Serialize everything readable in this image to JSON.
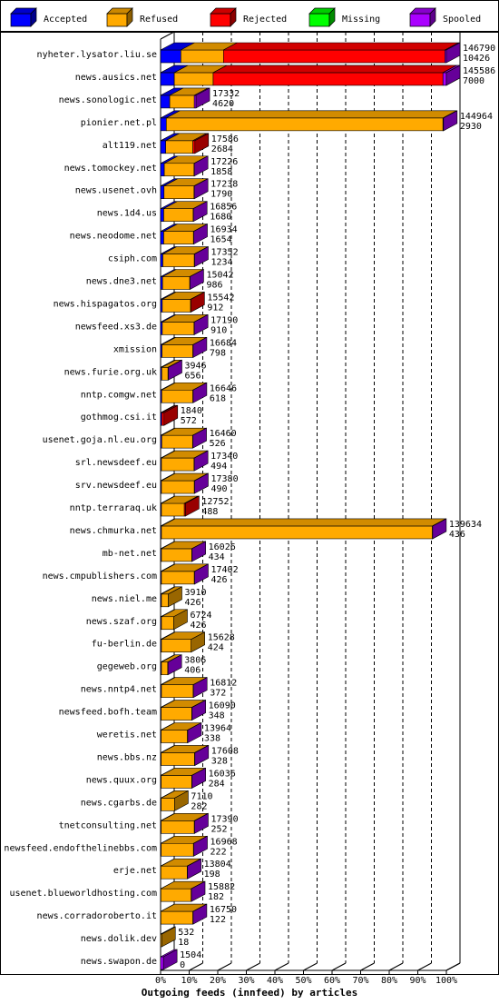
{
  "chart_data": {
    "type": "bar",
    "orientation": "horizontal",
    "stacked": true,
    "title": "",
    "xlabel": "Outgoing feeds (innfeed) by articles",
    "ylabel": "",
    "xlim": [
      0,
      100
    ],
    "x_ticks": [
      "0%",
      "10%",
      "20%",
      "30%",
      "40%",
      "50%",
      "60%",
      "70%",
      "80%",
      "90%",
      "100%"
    ],
    "grid": true,
    "legend_position": "top",
    "legend": [
      {
        "name": "Accepted",
        "color": "#0000ff"
      },
      {
        "name": "Refused",
        "color": "#ffaa00"
      },
      {
        "name": "Rejected",
        "color": "#ff0000"
      },
      {
        "name": "Missing",
        "color": "#00ff00"
      },
      {
        "name": "Spooled",
        "color": "#aa00ff"
      }
    ],
    "rows": [
      {
        "name": "nyheter.lysator.liu.se",
        "total": "146790",
        "accepted_label": "10426",
        "segments": [
          7.1,
          14.9,
          77.5,
          0,
          0.5
        ]
      },
      {
        "name": "news.ausics.net",
        "total": "145586",
        "accepted_label": "7000",
        "segments": [
          4.8,
          13.6,
          80.4,
          0,
          1.2
        ]
      },
      {
        "name": "news.sonologic.net",
        "total": "17332",
        "accepted_label": "4620",
        "segments": [
          3.2,
          8.6,
          0,
          0,
          0.6
        ]
      },
      {
        "name": "pionier.net.pl",
        "total": "144964",
        "accepted_label": "2930",
        "segments": [
          2.0,
          96.8,
          0,
          0,
          0.2
        ]
      },
      {
        "name": "alt119.net",
        "total": "17586",
        "accepted_label": "2684",
        "segments": [
          1.8,
          9.5,
          0.7,
          0,
          0
        ]
      },
      {
        "name": "news.tomockey.net",
        "total": "17226",
        "accepted_label": "1858",
        "segments": [
          1.3,
          10.4,
          0,
          0,
          0.1
        ]
      },
      {
        "name": "news.usenet.ovh",
        "total": "17238",
        "accepted_label": "1790",
        "segments": [
          1.2,
          10.5,
          0,
          0,
          0.1
        ]
      },
      {
        "name": "news.1d4.us",
        "total": "16856",
        "accepted_label": "1680",
        "segments": [
          1.1,
          10.3,
          0,
          0,
          0.1
        ]
      },
      {
        "name": "news.neodome.net",
        "total": "16934",
        "accepted_label": "1654",
        "segments": [
          1.1,
          10.4,
          0,
          0,
          0.1
        ]
      },
      {
        "name": "csiph.com",
        "total": "17352",
        "accepted_label": "1234",
        "segments": [
          0.8,
          11.0,
          0,
          0,
          0.1
        ]
      },
      {
        "name": "news.dne3.net",
        "total": "15042",
        "accepted_label": "986",
        "segments": [
          0.7,
          9.5,
          0,
          0,
          0.1
        ]
      },
      {
        "name": "news.hispagatos.org",
        "total": "15542",
        "accepted_label": "912",
        "segments": [
          0.6,
          9.9,
          0.1,
          0,
          0
        ]
      },
      {
        "name": "newsfeed.xs3.de",
        "total": "17190",
        "accepted_label": "910",
        "segments": [
          0.6,
          11.1,
          0,
          0,
          0.1
        ]
      },
      {
        "name": "xmission",
        "total": "16684",
        "accepted_label": "798",
        "segments": [
          0.5,
          10.8,
          0,
          0,
          0.1
        ]
      },
      {
        "name": "news.furie.org.uk",
        "total": "3946",
        "accepted_label": "656",
        "segments": [
          0.4,
          2.2,
          0,
          0,
          0.1
        ]
      },
      {
        "name": "nntp.comgw.net",
        "total": "16646",
        "accepted_label": "618",
        "segments": [
          0.4,
          10.9,
          0,
          0,
          0.1
        ]
      },
      {
        "name": "gothmog.csi.it",
        "total": "1840",
        "accepted_label": "572",
        "segments": [
          0.4,
          0,
          0.8,
          0,
          0
        ]
      },
      {
        "name": "usenet.goja.nl.eu.org",
        "total": "16460",
        "accepted_label": "526",
        "segments": [
          0.4,
          10.8,
          0,
          0,
          0.1
        ]
      },
      {
        "name": "srl.newsdeef.eu",
        "total": "17340",
        "accepted_label": "494",
        "segments": [
          0.3,
          11.4,
          0,
          0,
          0.1
        ]
      },
      {
        "name": "srv.newsdeef.eu",
        "total": "17380",
        "accepted_label": "490",
        "segments": [
          0.3,
          11.5,
          0,
          0,
          0.1
        ]
      },
      {
        "name": "nntp.terraraq.uk",
        "total": "12752",
        "accepted_label": "488",
        "segments": [
          0.3,
          8.0,
          0.4,
          0,
          0
        ]
      },
      {
        "name": "news.chmurka.net",
        "total": "139634",
        "accepted_label": "436",
        "segments": [
          0.3,
          94.8,
          0,
          0,
          0.1
        ]
      },
      {
        "name": "mb-net.net",
        "total": "16026",
        "accepted_label": "434",
        "segments": [
          0.3,
          10.6,
          0,
          0,
          0.1
        ]
      },
      {
        "name": "news.cmpublishers.com",
        "total": "17402",
        "accepted_label": "426",
        "segments": [
          0.3,
          11.5,
          0,
          0,
          0.1
        ]
      },
      {
        "name": "news.niel.me",
        "total": "3910",
        "accepted_label": "426",
        "segments": [
          0.3,
          2.4,
          0,
          0,
          0
        ]
      },
      {
        "name": "news.szaf.org",
        "total": "6724",
        "accepted_label": "426",
        "segments": [
          0.3,
          4.3,
          0,
          0,
          0
        ]
      },
      {
        "name": "fu-berlin.de",
        "total": "15628",
        "accepted_label": "424",
        "segments": [
          0.3,
          10.4,
          0,
          0,
          0
        ]
      },
      {
        "name": "gegeweb.org",
        "total": "3806",
        "accepted_label": "406",
        "segments": [
          0.3,
          2.2,
          0,
          0,
          0.1
        ]
      },
      {
        "name": "news.nntp4.net",
        "total": "16812",
        "accepted_label": "372",
        "segments": [
          0.3,
          11.1,
          0,
          0,
          0.1
        ]
      },
      {
        "name": "newsfeed.bofh.team",
        "total": "16090",
        "accepted_label": "348",
        "segments": [
          0.2,
          10.7,
          0,
          0,
          0.1
        ]
      },
      {
        "name": "weretis.net",
        "total": "13964",
        "accepted_label": "338",
        "segments": [
          0.2,
          9.2,
          0,
          0,
          0.1
        ]
      },
      {
        "name": "news.bbs.nz",
        "total": "17608",
        "accepted_label": "328",
        "segments": [
          0.2,
          11.7,
          0,
          0,
          0.1
        ]
      },
      {
        "name": "news.quux.org",
        "total": "16036",
        "accepted_label": "284",
        "segments": [
          0.2,
          10.7,
          0,
          0,
          0.1
        ]
      },
      {
        "name": "news.cgarbs.de",
        "total": "7110",
        "accepted_label": "282",
        "segments": [
          0.2,
          4.7,
          0,
          0,
          0
        ]
      },
      {
        "name": "tnetconsulting.net",
        "total": "17390",
        "accepted_label": "252",
        "segments": [
          0.2,
          11.6,
          0,
          0,
          0.1
        ]
      },
      {
        "name": "newsfeed.endofthelinebbs.com",
        "total": "16968",
        "accepted_label": "222",
        "segments": [
          0.2,
          11.3,
          0,
          0,
          0.1
        ]
      },
      {
        "name": "erje.net",
        "total": "13804",
        "accepted_label": "198",
        "segments": [
          0.1,
          9.2,
          0,
          0,
          0.1
        ]
      },
      {
        "name": "usenet.blueworldhosting.com",
        "total": "15882",
        "accepted_label": "182",
        "segments": [
          0.1,
          10.6,
          0,
          0,
          0.1
        ]
      },
      {
        "name": "news.corradoroberto.it",
        "total": "16750",
        "accepted_label": "122",
        "segments": [
          0.1,
          11.2,
          0,
          0,
          0.1
        ]
      },
      {
        "name": "news.dolik.dev",
        "total": "532",
        "accepted_label": "18",
        "segments": [
          0,
          0.4,
          0,
          0,
          0
        ]
      },
      {
        "name": "news.swapon.de",
        "total": "1504",
        "accepted_label": "0",
        "segments": [
          0,
          0,
          0,
          0,
          1.0
        ]
      }
    ]
  }
}
